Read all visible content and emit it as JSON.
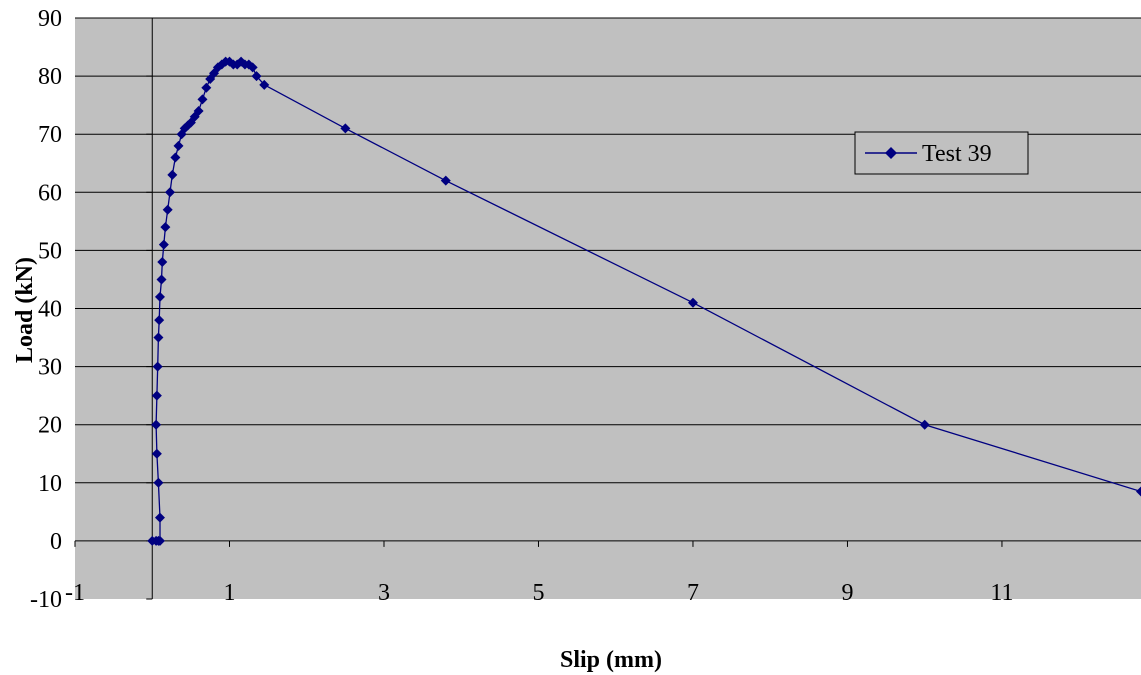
{
  "chart_data": {
    "type": "scatter",
    "title": "",
    "xlabel": "Slip (mm)",
    "ylabel": "Load (kN)",
    "xlim": [
      -1,
      12.8
    ],
    "ylim": [
      -10,
      90
    ],
    "x_ticks": [
      "-1",
      "1",
      "3",
      "5",
      "7",
      "9",
      "11"
    ],
    "y_ticks": [
      "-10",
      "0",
      "10",
      "20",
      "30",
      "40",
      "50",
      "60",
      "70",
      "80",
      "90"
    ],
    "grid": true,
    "legend_position": "right",
    "colors": {
      "plot_background": "#c0c0c0",
      "series": "#000080",
      "gridline": "#000000"
    },
    "series": [
      {
        "name": "Test 39",
        "marker": "diamond",
        "x": [
          0.0,
          0.05,
          0.08,
          0.1,
          0.1,
          0.08,
          0.06,
          0.05,
          0.06,
          0.07,
          0.08,
          0.09,
          0.1,
          0.12,
          0.13,
          0.15,
          0.17,
          0.2,
          0.23,
          0.26,
          0.3,
          0.34,
          0.38,
          0.42,
          0.46,
          0.5,
          0.55,
          0.6,
          0.65,
          0.7,
          0.75,
          0.8,
          0.85,
          0.9,
          0.95,
          1.0,
          1.05,
          1.1,
          1.15,
          1.2,
          1.25,
          1.3,
          1.35,
          1.45,
          2.5,
          3.8,
          7.0,
          10.0,
          12.8
        ],
        "y": [
          0.0,
          0.0,
          0.0,
          0.0,
          4.0,
          10.0,
          15.0,
          20.0,
          25.0,
          30.0,
          35.0,
          38.0,
          42.0,
          45.0,
          48.0,
          51.0,
          54.0,
          57.0,
          60.0,
          63.0,
          66.0,
          68.0,
          70.0,
          71.0,
          71.5,
          72.0,
          73.0,
          74.0,
          76.0,
          78.0,
          79.5,
          80.5,
          81.5,
          82.0,
          82.5,
          82.5,
          82.0,
          82.0,
          82.5,
          82.0,
          82.0,
          81.5,
          80.0,
          78.5,
          71.0,
          62.0,
          41.0,
          20.0,
          8.5
        ]
      }
    ]
  }
}
